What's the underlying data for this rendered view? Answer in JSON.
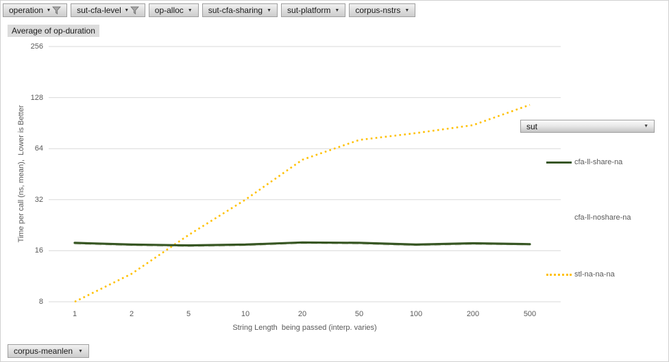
{
  "colors": {
    "accent_green": "#375623",
    "accent_yellow": "#FFC000",
    "noshare_light": "#d7dbcd",
    "gridline": "#d9d9d9",
    "axis_text": "#595959"
  },
  "filter_buttons": [
    {
      "label": "operation",
      "filtered": true
    },
    {
      "label": "sut-cfa-level",
      "filtered": true
    },
    {
      "label": "op-alloc",
      "filtered": false
    },
    {
      "label": "sut-cfa-sharing",
      "filtered": false
    },
    {
      "label": "sut-platform",
      "filtered": false
    },
    {
      "label": "corpus-nstrs",
      "filtered": false
    }
  ],
  "value_button": {
    "label": "Average of op-duration"
  },
  "legend_field_button": {
    "label": "sut"
  },
  "axis_field_button": {
    "label": "corpus-meanlen"
  },
  "legend": [
    {
      "label": "cfa-ll-share-na",
      "sample": "solid",
      "color": "#375623"
    },
    {
      "label": "cfa-ll-noshare-na",
      "sample": "none",
      "color": ""
    },
    {
      "label": "stl-na-na-na",
      "sample": "dotted",
      "color": "#FFC000"
    }
  ],
  "chart_data": {
    "type": "line",
    "title": "Average of op-duration",
    "categories": [
      1,
      2,
      5,
      10,
      20,
      50,
      100,
      200,
      500
    ],
    "series": [
      {
        "name": "cfa-ll-noshare-na",
        "color": "#d7dbcd",
        "style": "dashed",
        "values": [
          17.6,
          17.2,
          17.0,
          17.2,
          17.7,
          17.6,
          17.2,
          17.5,
          17.4
        ]
      },
      {
        "name": "stl-na-na-na",
        "color": "#FFC000",
        "style": "dotted",
        "values": [
          8,
          11.7,
          19.8,
          32,
          55,
          72,
          79,
          88,
          116
        ]
      },
      {
        "name": "cfa-ll-share-na",
        "color": "#375623",
        "style": "solid",
        "values": [
          17.8,
          17.4,
          17.2,
          17.4,
          17.9,
          17.8,
          17.4,
          17.7,
          17.5
        ]
      }
    ],
    "xlabel": "String Length  being passed (interp. varies)",
    "ylabel": "Time per call (ns, mean),  Lower is Better",
    "yticks": [
      8,
      16,
      32,
      64,
      128,
      256
    ],
    "y_scale": "log2",
    "ylim": [
      8,
      256
    ],
    "grid": true,
    "legend_position": "right"
  }
}
